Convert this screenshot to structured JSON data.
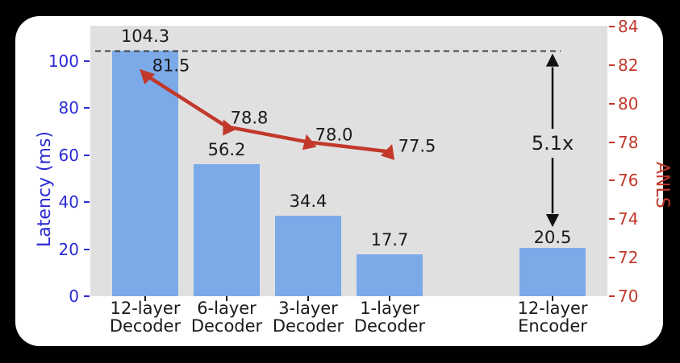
{
  "chart_data": {
    "type": "bar+line",
    "categories": [
      {
        "line1": "12-layer",
        "line2": "Decoder"
      },
      {
        "line1": "6-layer",
        "line2": "Decoder"
      },
      {
        "line1": "3-layer",
        "line2": "Decoder"
      },
      {
        "line1": "1-layer",
        "line2": "Decoder"
      },
      {
        "line1": "12-layer",
        "line2": "Encoder"
      }
    ],
    "positions": [
      0,
      1,
      2,
      3,
      5
    ],
    "bars": {
      "series_name": "Latency (ms)",
      "values": [
        104.3,
        56.2,
        34.4,
        17.7,
        20.5
      ],
      "labels": [
        "104.3",
        "56.2",
        "34.4",
        "17.7",
        "20.5"
      ],
      "color": "#7caae9"
    },
    "line": {
      "series_name": "ANLS",
      "values": [
        81.5,
        78.8,
        78.0,
        77.5
      ],
      "labels": [
        "81.5",
        "78.8",
        "78.0",
        "77.5"
      ],
      "color": "#c2392b"
    },
    "left_axis": {
      "label": "Latency (ms)",
      "ticks": [
        0,
        20,
        40,
        60,
        80,
        100
      ],
      "range": [
        0,
        115
      ],
      "color": "#2b2bd5"
    },
    "right_axis": {
      "label": "ANLS",
      "ticks": [
        70,
        72,
        74,
        76,
        78,
        80,
        82,
        84
      ],
      "range": [
        70,
        84
      ],
      "color": "#c2392b"
    },
    "annotations": {
      "dashed_line_value": 104.3,
      "speedup_text": "5.1x",
      "arrow_color": "#111111",
      "dashed_color": "#3a3a3a"
    },
    "plot_background": "#e0e0e0",
    "grid": "off",
    "legend": "none"
  }
}
